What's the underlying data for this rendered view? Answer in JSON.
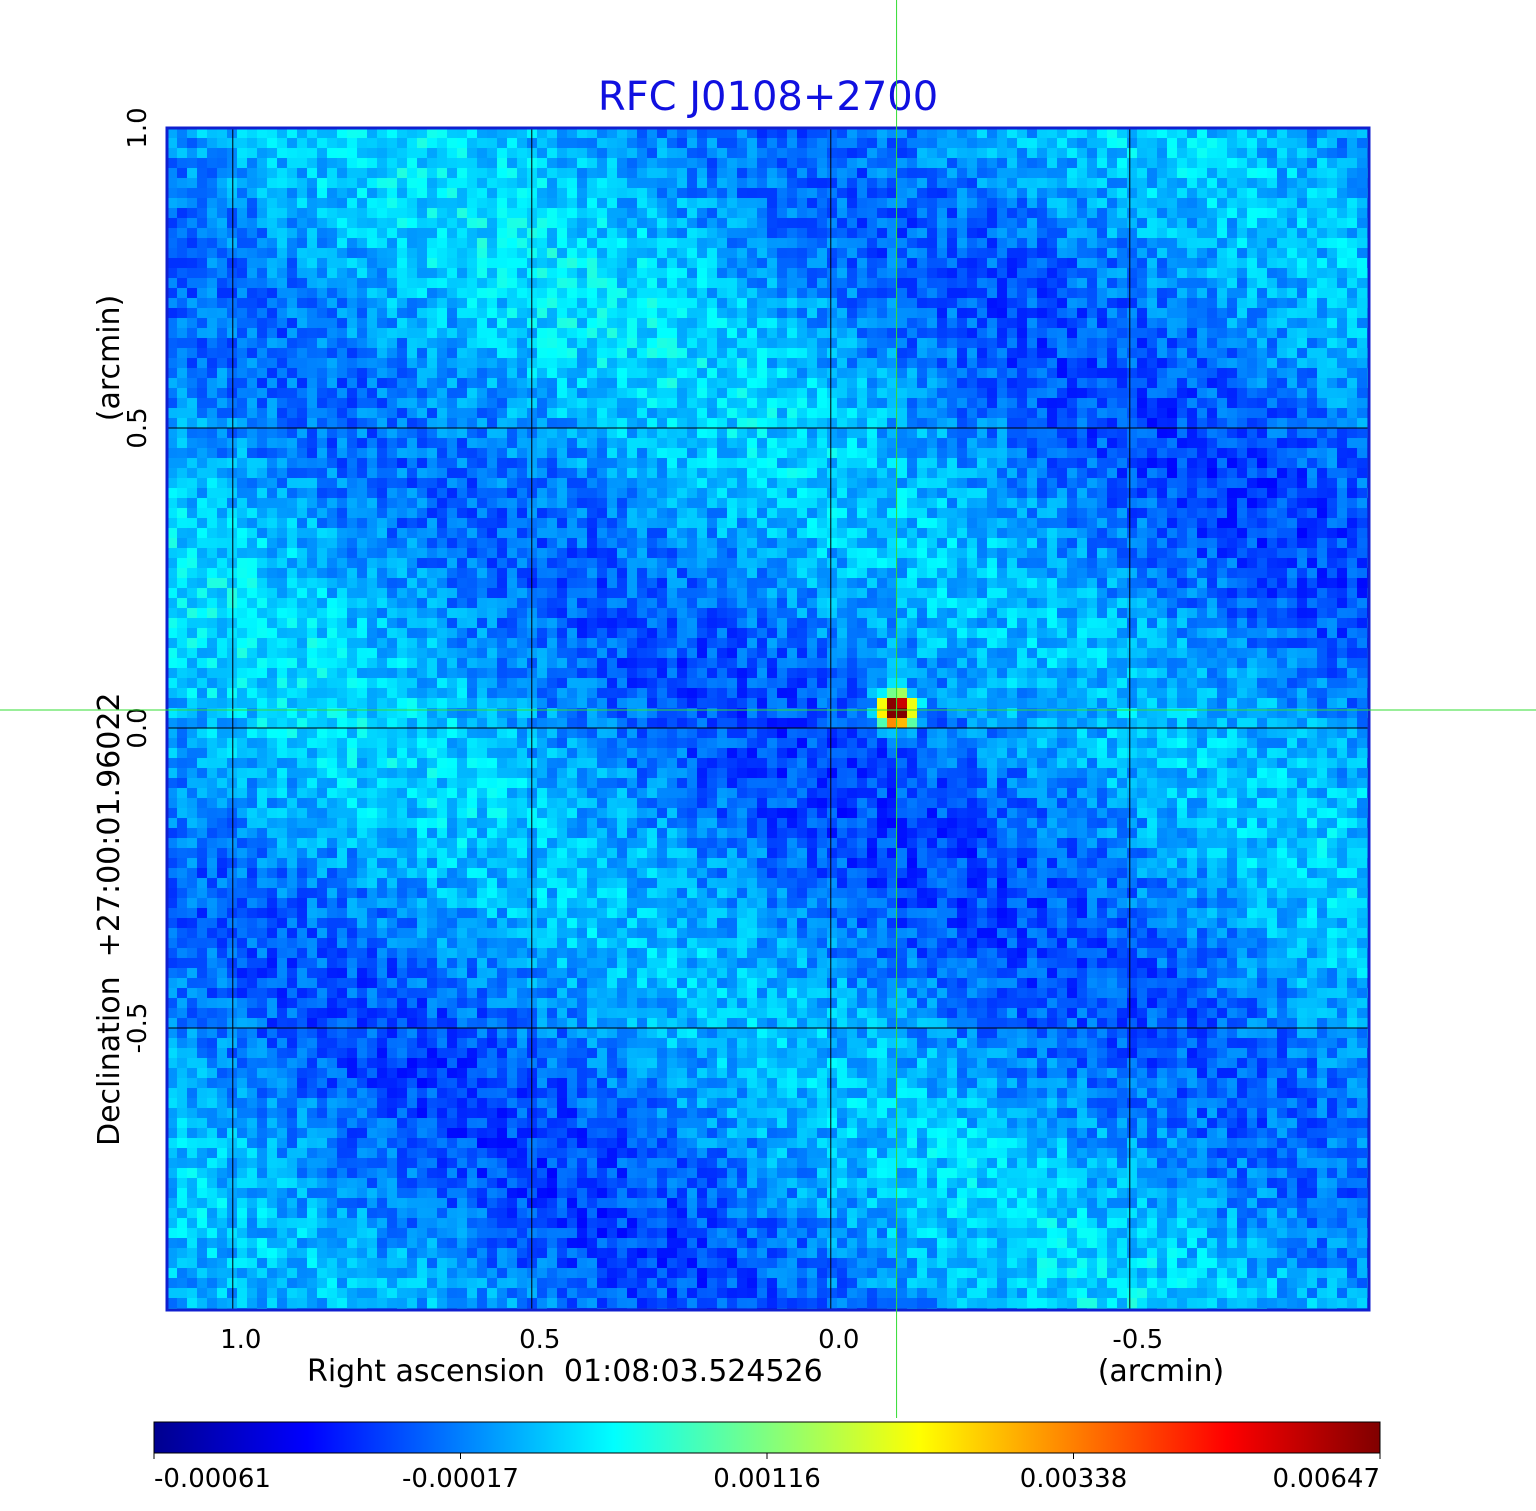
{
  "chart_data": {
    "type": "heatmap",
    "title": "RFC J0108+2700",
    "colors": {
      "title": "#1010e0",
      "crosshair": "#33dd33",
      "grid": "#000000",
      "frame": "#1020d0"
    },
    "xaxis": {
      "label": "Right ascension  01:08:03.524526",
      "unit": "(arcmin)",
      "range": [
        1.11,
        -0.9
      ],
      "ticks": [
        1.0,
        0.5,
        0.0,
        -0.5
      ],
      "tick_labels": [
        "1.0",
        "0.5",
        "0.0",
        "-0.5"
      ],
      "grid": true
    },
    "yaxis": {
      "label": "Declination  +27:00:01.96022",
      "unit": "(arcmin)",
      "range": [
        -0.97,
        1.0
      ],
      "ticks": [
        1.0,
        0.5,
        0.0,
        -0.5
      ],
      "tick_labels": [
        "1.0",
        "0.5",
        "0.0",
        "-0.5"
      ],
      "grid": true
    },
    "crosshair": {
      "x": -0.11,
      "y": 0.03
    },
    "source_peak": {
      "x": -0.11,
      "y": 0.03,
      "value": 0.00647
    },
    "colorbar": {
      "colormap": "jet",
      "min": -0.00061,
      "max": 0.00647,
      "ticks": [
        -0.00061,
        -0.00017,
        0.00116,
        0.00338,
        0.00647
      ],
      "tick_labels": [
        "-0.00061",
        "-0.00017",
        "0.00116",
        "0.00338",
        "0.00647"
      ]
    }
  }
}
